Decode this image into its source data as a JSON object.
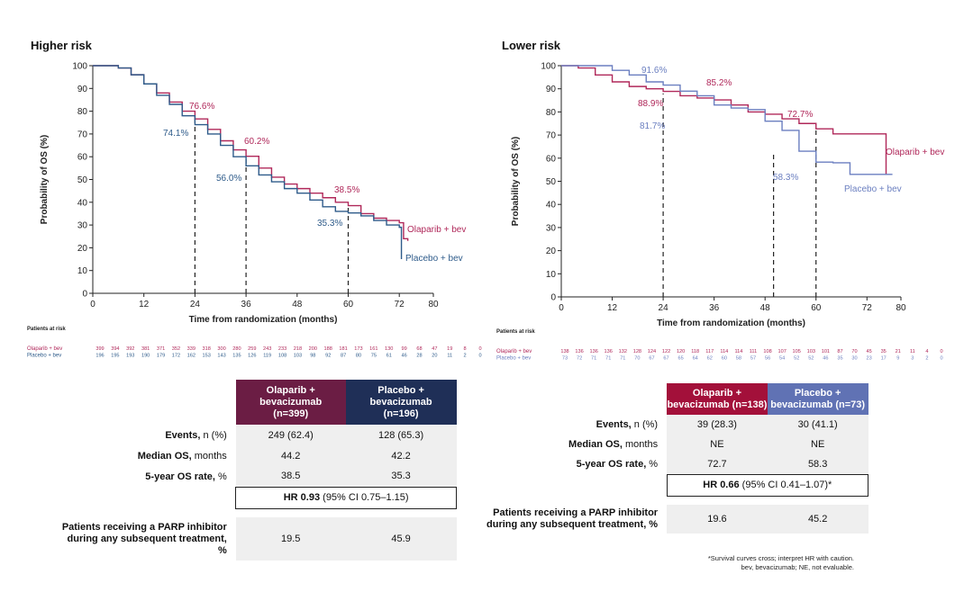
{
  "colors": {
    "olaparib": "#b0285a",
    "placebo": "#2e5b8a",
    "placebo_light": "#6b7fc0",
    "hdr_olap_left": "#6b1d44",
    "hdr_plac_left": "#1f2f57",
    "hdr_olap_right": "#a3103a",
    "hdr_plac_right": "#6072b4"
  },
  "left": {
    "title": "Higher risk",
    "at_risk_title": "Patients at risk",
    "at_risk": [
      {
        "label": "Olaparib + bev",
        "values": [
          "399",
          "394",
          "392",
          "381",
          "371",
          "352",
          "339",
          "318",
          "300",
          "280",
          "259",
          "243",
          "233",
          "218",
          "200",
          "188",
          "181",
          "173",
          "161",
          "130",
          "99",
          "68",
          "47",
          "19",
          "8",
          "0"
        ]
      },
      {
        "label": "Placebo + bev",
        "values": [
          "196",
          "195",
          "193",
          "190",
          "179",
          "172",
          "162",
          "153",
          "143",
          "135",
          "126",
          "119",
          "108",
          "103",
          "98",
          "92",
          "87",
          "80",
          "75",
          "61",
          "46",
          "28",
          "20",
          "11",
          "2",
          "0"
        ]
      }
    ],
    "table": {
      "head": [
        "Olaparib +\nbevacizumab\n(n=399)",
        "Placebo +\nbevacizumab\n(n=196)"
      ],
      "rows": [
        {
          "bold": "Events,",
          "rest": " n (%)",
          "a": "249 (62.4)",
          "b": "128 (65.3)"
        },
        {
          "bold": "Median OS,",
          "rest": " months",
          "a": "44.2",
          "b": "42.2"
        },
        {
          "bold": "5-year OS rate,",
          "rest": " %",
          "a": "38.5",
          "b": "35.3"
        }
      ],
      "hr_bold": "HR 0.93",
      "hr_rest": " (95% CI 0.75–1.15)",
      "parp_label": "Patients receiving a PARP inhibitor\nduring any subsequent treatment,\n%",
      "parp": [
        "19.5",
        "45.9"
      ]
    }
  },
  "right": {
    "title": "Lower risk",
    "at_risk_title": "Patients at risk",
    "at_risk": [
      {
        "label": "Olaparib + bev",
        "values": [
          "138",
          "136",
          "136",
          "136",
          "132",
          "128",
          "124",
          "122",
          "120",
          "118",
          "117",
          "114",
          "114",
          "111",
          "108",
          "107",
          "105",
          "103",
          "101",
          "87",
          "70",
          "45",
          "35",
          "21",
          "11",
          "4",
          "0"
        ]
      },
      {
        "label": "Placebo + bev",
        "values": [
          "73",
          "72",
          "71",
          "71",
          "71",
          "70",
          "67",
          "67",
          "65",
          "64",
          "62",
          "60",
          "58",
          "57",
          "56",
          "54",
          "52",
          "52",
          "46",
          "35",
          "30",
          "23",
          "17",
          "9",
          "3",
          "2",
          "0"
        ]
      }
    ],
    "table": {
      "head": [
        "Olaparib +\nbevacizumab (n=138)",
        "Placebo +\nbevacizumab (n=73)"
      ],
      "rows": [
        {
          "bold": "Events,",
          "rest": " n (%)",
          "a": "39 (28.3)",
          "b": "30 (41.1)"
        },
        {
          "bold": "Median OS,",
          "rest": " months",
          "a": "NE",
          "b": "NE"
        },
        {
          "bold": "5-year OS rate,",
          "rest": " %",
          "a": "72.7",
          "b": "58.3"
        }
      ],
      "hr_bold": "HR 0.66",
      "hr_rest": " (95% CI 0.41–1.07)*",
      "parp_label": "Patients receiving a PARP inhibitor\nduring any subsequent treatment, %",
      "parp": [
        "19.6",
        "45.2"
      ]
    },
    "footnote_1": "*Survival curves cross; interpret HR with caution.",
    "footnote_2": "bev, bevacizumab; NE, not evaluable."
  },
  "chart_data": [
    {
      "type": "line",
      "title": "Higher risk",
      "xlabel": "Time from randomization (months)",
      "ylabel": "Probability of OS (%)",
      "xlim": [
        0,
        80
      ],
      "ylim": [
        0,
        100
      ],
      "xticks": [
        0,
        12,
        24,
        36,
        48,
        60,
        72,
        80
      ],
      "yticks": [
        0,
        10,
        20,
        30,
        40,
        50,
        60,
        70,
        80,
        90,
        100
      ],
      "series": [
        {
          "name": "Olaparib + bev",
          "color": "#b0285a",
          "x": [
            0,
            3,
            6,
            9,
            12,
            15,
            18,
            21,
            24,
            27,
            30,
            33,
            36,
            39,
            42,
            45,
            48,
            51,
            54,
            57,
            60,
            63,
            66,
            69,
            72,
            73,
            74
          ],
          "y": [
            100,
            100,
            99,
            96,
            92,
            88,
            84,
            80,
            76.6,
            72,
            67,
            63,
            60.2,
            55,
            51,
            48,
            46,
            44,
            42,
            40,
            38.5,
            35,
            33,
            32,
            31,
            24,
            23
          ]
        },
        {
          "name": "Placebo + bev",
          "color": "#2e5b8a",
          "x": [
            0,
            3,
            6,
            9,
            12,
            15,
            18,
            21,
            24,
            27,
            30,
            33,
            36,
            39,
            42,
            45,
            48,
            51,
            54,
            57,
            60,
            63,
            66,
            69,
            72,
            72.5
          ],
          "y": [
            100,
            100,
            99,
            96,
            92,
            87,
            83,
            78,
            74.1,
            70,
            65,
            60,
            56,
            52,
            49,
            46,
            44,
            41,
            38,
            36,
            35.3,
            34,
            32,
            30,
            29,
            15
          ]
        }
      ],
      "annotations": [
        "76.6%",
        "74.1%",
        "60.2%",
        "56.0%",
        "38.5%",
        "35.3%"
      ],
      "legend": [
        "Olaparib + bev",
        "Placebo + bev"
      ]
    },
    {
      "type": "line",
      "title": "Lower risk",
      "xlabel": "Time from randomization (months)",
      "ylabel": "Probability of OS (%)",
      "xlim": [
        0,
        80
      ],
      "ylim": [
        0,
        100
      ],
      "xticks": [
        0,
        12,
        24,
        36,
        48,
        60,
        72,
        80
      ],
      "yticks": [
        0,
        10,
        20,
        30,
        40,
        50,
        60,
        70,
        80,
        90,
        100
      ],
      "series": [
        {
          "name": "Olaparib + bev",
          "color": "#b0285a",
          "x": [
            0,
            4,
            8,
            12,
            16,
            20,
            24,
            28,
            32,
            36,
            40,
            44,
            48,
            52,
            56,
            60,
            64,
            68,
            72,
            76,
            76.5
          ],
          "y": [
            100,
            99,
            96,
            93,
            91,
            90,
            88.9,
            87,
            86,
            85.2,
            83,
            80,
            79,
            77,
            75,
            72.7,
            70.5,
            70.5,
            70.5,
            70.5,
            53
          ]
        },
        {
          "name": "Placebo + bev",
          "color": "#6b7fc0",
          "x": [
            0,
            8,
            12,
            16,
            20,
            24,
            28,
            32,
            36,
            40,
            44,
            48,
            52,
            56,
            60,
            64,
            68,
            72,
            76,
            78
          ],
          "y": [
            100,
            100,
            98,
            96,
            93,
            91.6,
            89,
            87,
            83,
            81.7,
            81,
            76,
            72,
            63,
            58.3,
            58,
            53,
            53,
            53,
            53
          ]
        }
      ],
      "annotations": [
        "91.6%",
        "85.2%",
        "88.9%",
        "81.7%",
        "72.7%",
        "58.3%"
      ],
      "legend": [
        "Olaparib + bev",
        "Placebo + bev"
      ]
    }
  ]
}
